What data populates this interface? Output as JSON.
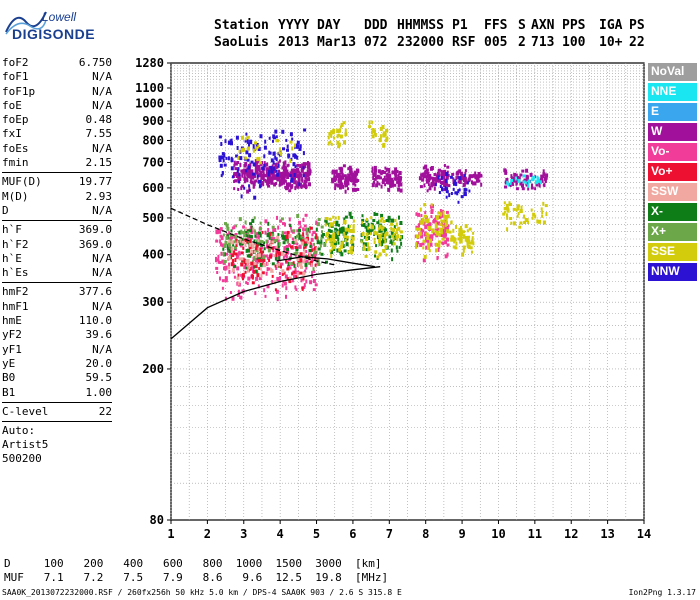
{
  "logo": {
    "line1": "Lowell",
    "line2": "DIGISONDE"
  },
  "header": {
    "labels": [
      "Station",
      "YYYY",
      "DAY",
      "DDD",
      "HHMMSS",
      "P1",
      "FFS",
      "S",
      "AXN",
      "PPS",
      "IGA",
      "PS"
    ],
    "values": [
      "SaoLuis",
      "2013",
      "Mar13",
      "072",
      "232000",
      "RSF",
      "005",
      "2",
      "713",
      "100",
      "10+",
      "22"
    ]
  },
  "params": [
    {
      "group": [
        {
          "k": "foF2",
          "v": "6.750"
        },
        {
          "k": "foF1",
          "v": "N/A"
        },
        {
          "k": "foF1p",
          "v": "N/A"
        },
        {
          "k": "foE",
          "v": "N/A"
        },
        {
          "k": "foEp",
          "v": "0.48"
        },
        {
          "k": "fxI",
          "v": "7.55"
        },
        {
          "k": "foEs",
          "v": "N/A"
        },
        {
          "k": "fmin",
          "v": "2.15"
        }
      ]
    },
    {
      "group": [
        {
          "k": "MUF(D)",
          "v": "19.77"
        },
        {
          "k": "M(D)",
          "v": "2.93"
        },
        {
          "k": "D",
          "v": "N/A"
        }
      ]
    },
    {
      "group": [
        {
          "k": "h`F",
          "v": "369.0"
        },
        {
          "k": "h`F2",
          "v": "369.0"
        },
        {
          "k": "h`E",
          "v": "N/A"
        },
        {
          "k": "h`Es",
          "v": "N/A"
        }
      ]
    },
    {
      "group": [
        {
          "k": "hmF2",
          "v": "377.6"
        },
        {
          "k": "hmF1",
          "v": "N/A"
        },
        {
          "k": "hmE",
          "v": "110.0"
        },
        {
          "k": "yF2",
          "v": "39.6"
        },
        {
          "k": "yF1",
          "v": "N/A"
        },
        {
          "k": "yE",
          "v": "20.0"
        },
        {
          "k": "B0",
          "v": "59.5"
        },
        {
          "k": "B1",
          "v": "1.00"
        }
      ]
    },
    {
      "group": [
        {
          "k": "C-level",
          "v": "22"
        }
      ]
    }
  ],
  "auto": [
    "Auto:",
    "Artist5",
    "500200"
  ],
  "legend": [
    {
      "label": "NoVal",
      "color": "#9e9e9e"
    },
    {
      "label": "NNE",
      "color": "#19e6f0"
    },
    {
      "label": "E",
      "color": "#3aa6ee"
    },
    {
      "label": "W",
      "color": "#a0109a"
    },
    {
      "label": "Vo-",
      "color": "#f23c9a"
    },
    {
      "label": "Vo+",
      "color": "#ee1030"
    },
    {
      "label": "SSW",
      "color": "#f0a8a0"
    },
    {
      "label": "X-",
      "color": "#0e7d18"
    },
    {
      "label": "X+",
      "color": "#6ca84a"
    },
    {
      "label": "SSE",
      "color": "#d2cc0c"
    },
    {
      "label": "NNW",
      "color": "#2c12d2"
    }
  ],
  "footer": {
    "d_row": "D     100   200   400   600   800  1000  1500  3000  [km]",
    "muf_row": "MUF   7.1   7.2   7.5   7.9   8.6   9.6  12.5  19.8  [MHz]",
    "file_info": "SAA0K_2013072232000.RSF / 260fx256h 50 kHz 5.0 km / DPS-4 SAA0K 903 / 2.6 S 315.8 E",
    "version": "Ion2Png 1.3.17"
  },
  "chart_data": {
    "type": "scatter",
    "xlabel": "",
    "ylabel": "",
    "xlim": [
      1,
      14
    ],
    "ylim": [
      80,
      1280
    ],
    "x_ticks": [
      1,
      2,
      3,
      4,
      5,
      6,
      7,
      8,
      9,
      10,
      11,
      12,
      13,
      14
    ],
    "y_ticks": [
      80,
      200,
      300,
      400,
      500,
      600,
      700,
      800,
      900,
      1000,
      1100,
      1280
    ],
    "grid": true,
    "log_y": true,
    "clusters": [
      {
        "x": [
          2.7,
          4.8
        ],
        "y": [
          590,
          720
        ],
        "color": "#a0109a",
        "n": 340
      },
      {
        "x": [
          5.4,
          6.1
        ],
        "y": [
          590,
          700
        ],
        "color": "#a0109a",
        "n": 110
      },
      {
        "x": [
          6.5,
          7.3
        ],
        "y": [
          590,
          690
        ],
        "color": "#a0109a",
        "n": 90
      },
      {
        "x": [
          7.8,
          8.6
        ],
        "y": [
          590,
          700
        ],
        "color": "#a0109a",
        "n": 90
      },
      {
        "x": [
          8.7,
          9.5
        ],
        "y": [
          610,
          680
        ],
        "color": "#a0109a",
        "n": 55
      },
      {
        "x": [
          10.1,
          11.3
        ],
        "y": [
          590,
          680
        ],
        "color": "#a0109a",
        "n": 70
      },
      {
        "x": [
          2.2,
          5.0
        ],
        "y": [
          290,
          520
        ],
        "color": "#f23c9a",
        "n": 300
      },
      {
        "x": [
          2.4,
          5.2
        ],
        "y": [
          360,
          500
        ],
        "color": "#0e7d18",
        "n": 120
      },
      {
        "x": [
          2.4,
          5.2
        ],
        "y": [
          360,
          520
        ],
        "color": "#6ca84a",
        "n": 90
      },
      {
        "x": [
          2.6,
          5.0
        ],
        "y": [
          320,
          480
        ],
        "color": "#ee1030",
        "n": 110
      },
      {
        "x": [
          2.5,
          5.0
        ],
        "y": [
          330,
          480
        ],
        "color": "#f0a8a0",
        "n": 70
      },
      {
        "x": [
          5.2,
          6.0
        ],
        "y": [
          380,
          520
        ],
        "color": "#0e7d18",
        "n": 70
      },
      {
        "x": [
          5.2,
          6.0
        ],
        "y": [
          390,
          520
        ],
        "color": "#d2cc0c",
        "n": 60
      },
      {
        "x": [
          6.2,
          7.3
        ],
        "y": [
          380,
          530
        ],
        "color": "#0e7d18",
        "n": 90
      },
      {
        "x": [
          6.2,
          7.3
        ],
        "y": [
          390,
          520
        ],
        "color": "#d2cc0c",
        "n": 70
      },
      {
        "x": [
          7.7,
          8.6
        ],
        "y": [
          380,
          560
        ],
        "color": "#f23c9a",
        "n": 110
      },
      {
        "x": [
          7.7,
          8.6
        ],
        "y": [
          380,
          560
        ],
        "color": "#d2cc0c",
        "n": 70
      },
      {
        "x": [
          8.6,
          9.3
        ],
        "y": [
          400,
          500
        ],
        "color": "#d2cc0c",
        "n": 60
      },
      {
        "x": [
          10.1,
          11.3
        ],
        "y": [
          460,
          590
        ],
        "color": "#d2cc0c",
        "n": 45
      },
      {
        "x": [
          2.3,
          4.7
        ],
        "y": [
          560,
          900
        ],
        "color": "#2c12d2",
        "n": 130
      },
      {
        "x": [
          5.3,
          5.8
        ],
        "y": [
          760,
          900
        ],
        "color": "#d2cc0c",
        "n": 30
      },
      {
        "x": [
          6.4,
          6.9
        ],
        "y": [
          780,
          910
        ],
        "color": "#d2cc0c",
        "n": 25
      },
      {
        "x": [
          8.2,
          9.2
        ],
        "y": [
          540,
          680
        ],
        "color": "#2c12d2",
        "n": 35
      },
      {
        "x": [
          10.2,
          11.2
        ],
        "y": [
          600,
          670
        ],
        "color": "#19e6f0",
        "n": 18
      },
      {
        "x": [
          2.6,
          4.5
        ],
        "y": [
          700,
          860
        ],
        "color": "#d2cc0c",
        "n": 25
      }
    ],
    "trace_lines": [
      {
        "x": [
          1.0,
          2.0,
          3.0,
          4.0,
          5.0,
          6.0,
          6.75
        ],
        "y": [
          240,
          290,
          320,
          340,
          355,
          365,
          372
        ],
        "style": "solid"
      },
      {
        "x": [
          3.9,
          4.6,
          5.3,
          6.0,
          6.6
        ],
        "y": [
          385,
          395,
          390,
          380,
          372
        ],
        "style": "solid"
      },
      {
        "x": [
          1.0,
          2.0,
          3.0,
          4.0,
          5.0,
          5.5
        ],
        "y": [
          530,
          480,
          440,
          410,
          385,
          376
        ],
        "style": "dashed"
      }
    ]
  }
}
